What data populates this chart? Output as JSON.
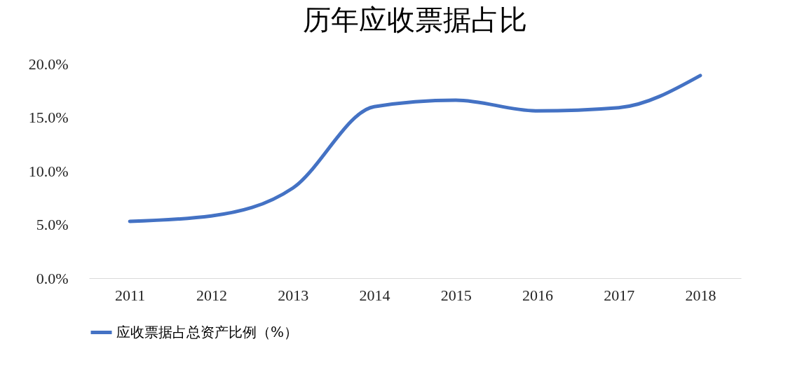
{
  "chart_data": {
    "type": "line",
    "title": "历年应收票据占比",
    "categories": [
      "2011",
      "2012",
      "2013",
      "2014",
      "2015",
      "2016",
      "2017",
      "2018"
    ],
    "series": [
      {
        "name": "应收票据占总资产比例（%）",
        "color": "#4472c4",
        "values": [
          5.3,
          5.8,
          8.4,
          16.0,
          16.6,
          15.6,
          15.9,
          18.9
        ]
      }
    ],
    "ylim": [
      0,
      20
    ],
    "yticks": [
      {
        "value": 0,
        "label": "0.0%"
      },
      {
        "value": 5,
        "label": "5.0%"
      },
      {
        "value": 10,
        "label": "10.0%"
      },
      {
        "value": 15,
        "label": "15.0%"
      },
      {
        "value": 20,
        "label": "20.0%"
      }
    ],
    "grid": false,
    "legend": "bottom",
    "marker": "none",
    "line_style": "solid"
  }
}
